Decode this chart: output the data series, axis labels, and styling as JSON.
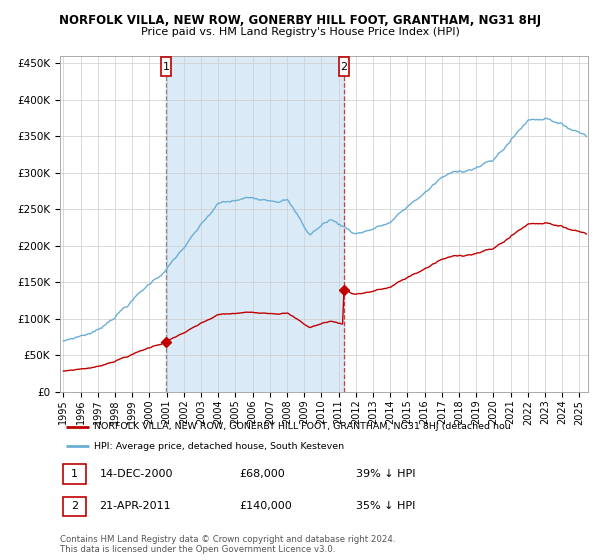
{
  "title_line1": "NORFOLK VILLA, NEW ROW, GONERBY HILL FOOT, GRANTHAM, NG31 8HJ",
  "title_line2": "Price paid vs. HM Land Registry's House Price Index (HPI)",
  "ylim": [
    0,
    460000
  ],
  "xlim_start": 1994.8,
  "xlim_end": 2025.5,
  "yticks": [
    0,
    50000,
    100000,
    150000,
    200000,
    250000,
    300000,
    350000,
    400000,
    450000
  ],
  "ytick_labels": [
    "£0",
    "£50K",
    "£100K",
    "£150K",
    "£200K",
    "£250K",
    "£300K",
    "£350K",
    "£400K",
    "£450K"
  ],
  "xtick_years": [
    1995,
    1996,
    1997,
    1998,
    1999,
    2000,
    2001,
    2002,
    2003,
    2004,
    2005,
    2006,
    2007,
    2008,
    2009,
    2010,
    2011,
    2012,
    2013,
    2014,
    2015,
    2016,
    2017,
    2018,
    2019,
    2020,
    2021,
    2022,
    2023,
    2024,
    2025
  ],
  "sale1_date": 2000.96,
  "sale1_price": 68000,
  "sale1_label": "1",
  "sale2_date": 2011.3,
  "sale2_price": 140000,
  "sale2_label": "2",
  "hpi_color": "#6aaed6",
  "price_color": "#c00000",
  "shading_color": "#daeaf7",
  "grid_color": "#cccccc",
  "background_color": "#ffffff",
  "legend_label_red": "NORFOLK VILLA, NEW ROW, GONERBY HILL FOOT, GRANTHAM, NG31 8HJ (detached hou",
  "legend_label_blue": "HPI: Average price, detached house, South Kesteven",
  "annotation1_date": "14-DEC-2000",
  "annotation1_price": "£68,000",
  "annotation1_hpi": "39% ↓ HPI",
  "annotation2_date": "21-APR-2011",
  "annotation2_price": "£140,000",
  "annotation2_hpi": "35% ↓ HPI",
  "footer": "Contains HM Land Registry data © Crown copyright and database right 2024.\nThis data is licensed under the Open Government Licence v3.0."
}
